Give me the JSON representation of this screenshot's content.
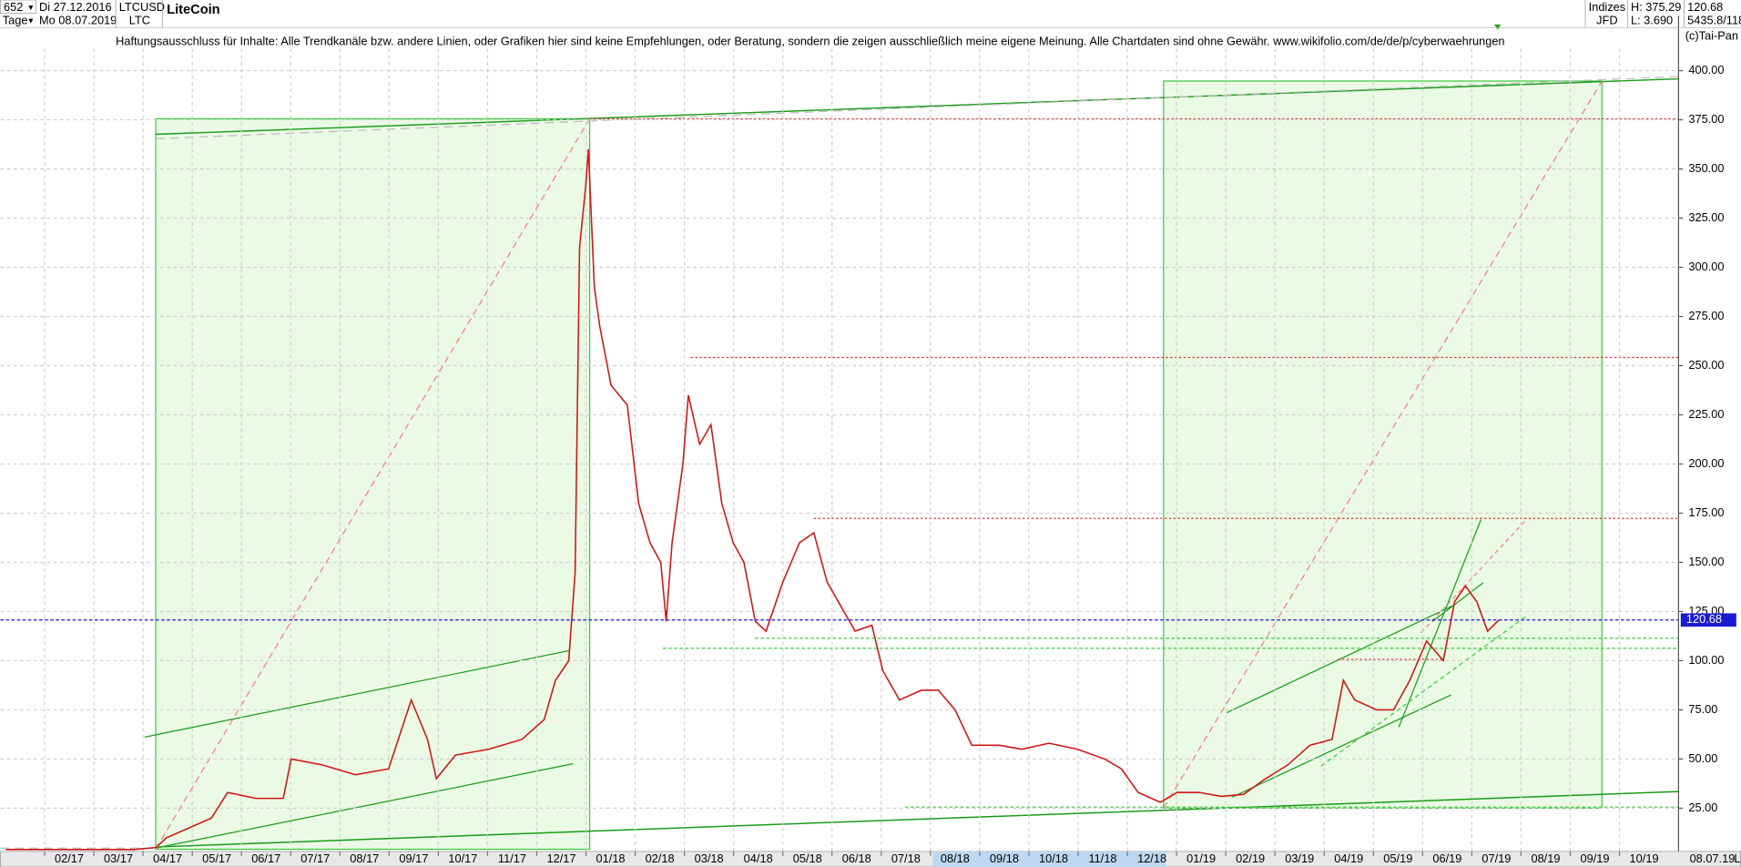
{
  "header": {
    "count": "652",
    "start_date": "Di 27.12.2016",
    "symbol": "LTCUSD",
    "name": "LiteCoin",
    "period": "Tage",
    "end_date": "Mo 08.07.2019",
    "short": "LTC",
    "group": "Indizes",
    "source": "JFD",
    "high": "H: 375.29",
    "low": "L: 3.690",
    "last": "120.68",
    "extra": "5435.8/118",
    "copyright": "(c)Tai-Pan"
  },
  "disclaimer": "Haftungsausschluss für Inhalte: Alle Trendkanäle bzw. andere Linien, oder Grafiken hier sind keine Empfehlungen, oder Beratung, sondern die zeigen ausschließlich meine eigene Meinung. Alle Chartdaten sind ohne Gewähr.  www.wikifolio.com/de/de/p/cyberwaehrungen",
  "footer": {
    "date": "08.07.19",
    "mode": "L"
  },
  "chart_data": {
    "type": "line",
    "color": "#d01818",
    "grid": true,
    "current_price": 120.68,
    "current_label": "120.68",
    "xlim": [
      0.1,
      34.2
    ],
    "ylim": [
      3,
      428
    ],
    "xticks": [
      {
        "value": 1,
        "label": "02/17"
      },
      {
        "value": 2,
        "label": "03/17"
      },
      {
        "value": 3,
        "label": "04/17"
      },
      {
        "value": 4,
        "label": "05/17"
      },
      {
        "value": 5,
        "label": "06/17"
      },
      {
        "value": 6,
        "label": "07/17"
      },
      {
        "value": 7,
        "label": "08/17"
      },
      {
        "value": 8,
        "label": "09/17"
      },
      {
        "value": 9,
        "label": "10/17"
      },
      {
        "value": 10,
        "label": "11/17"
      },
      {
        "value": 11,
        "label": "12/17"
      },
      {
        "value": 12,
        "label": "01/18"
      },
      {
        "value": 13,
        "label": "02/18"
      },
      {
        "value": 14,
        "label": "03/18"
      },
      {
        "value": 15,
        "label": "04/18"
      },
      {
        "value": 16,
        "label": "05/18"
      },
      {
        "value": 17,
        "label": "06/18"
      },
      {
        "value": 18,
        "label": "07/18"
      },
      {
        "value": 19,
        "label": "08/18"
      },
      {
        "value": 20,
        "label": "09/18"
      },
      {
        "value": 21,
        "label": "10/18"
      },
      {
        "value": 22,
        "label": "11/18"
      },
      {
        "value": 23,
        "label": "12/18"
      },
      {
        "value": 24,
        "label": "01/19"
      },
      {
        "value": 25,
        "label": "02/19"
      },
      {
        "value": 26,
        "label": "03/19"
      },
      {
        "value": 27,
        "label": "04/19"
      },
      {
        "value": 28,
        "label": "05/19"
      },
      {
        "value": 29,
        "label": "06/19"
      },
      {
        "value": 30,
        "label": "07/19"
      },
      {
        "value": 31,
        "label": "08/19"
      },
      {
        "value": 32,
        "label": "09/19"
      },
      {
        "value": 33,
        "label": "10/19"
      }
    ],
    "yticks": [
      {
        "value": 25,
        "label": "25.00"
      },
      {
        "value": 50,
        "label": "50.00"
      },
      {
        "value": 75,
        "label": "75.00"
      },
      {
        "value": 100,
        "label": "100.00"
      },
      {
        "value": 125,
        "label": "125.00"
      },
      {
        "value": 150,
        "label": "150.00"
      },
      {
        "value": 175,
        "label": "175.00"
      },
      {
        "value": 200,
        "label": "200.00"
      },
      {
        "value": 225,
        "label": "225.00"
      },
      {
        "value": 250,
        "label": "250.00"
      },
      {
        "value": 275,
        "label": "275.00"
      },
      {
        "value": 300,
        "label": "300.00"
      },
      {
        "value": 325,
        "label": "325.00"
      },
      {
        "value": 350,
        "label": "350.00"
      },
      {
        "value": 375,
        "label": "375.00"
      },
      {
        "value": 400,
        "label": "400.00"
      }
    ],
    "x": [
      0.21,
      1.45,
      2.81,
      3.26,
      3.48,
      3.94,
      4.39,
      4.72,
      5.29,
      5.85,
      6.01,
      6.64,
      7.32,
      7.99,
      8.45,
      8.78,
      8.96,
      9.35,
      10.03,
      10.7,
      11.15,
      11.38,
      11.65,
      11.78,
      11.87,
      11.99,
      12.05,
      12.17,
      12.28,
      12.51,
      12.84,
      13.07,
      13.3,
      13.52,
      13.63,
      13.75,
      13.97,
      14.08,
      14.31,
      14.54,
      14.76,
      14.99,
      15.21,
      15.44,
      15.66,
      16.0,
      16.34,
      16.63,
      16.9,
      17.24,
      17.47,
      17.81,
      18.03,
      18.37,
      18.82,
      19.16,
      19.5,
      19.84,
      20.4,
      20.85,
      21.41,
      21.98,
      22.54,
      22.88,
      23.22,
      23.67,
      24.01,
      24.46,
      24.91,
      25.36,
      25.81,
      26.26,
      26.71,
      27.16,
      27.39,
      27.62,
      28.07,
      28.41,
      28.74,
      29.08,
      29.42,
      29.65,
      29.87,
      30.1,
      30.32,
      30.55
    ],
    "values": [
      4,
      4,
      4,
      5,
      10,
      15,
      20,
      33,
      30,
      30,
      50,
      47,
      42,
      45,
      80,
      60,
      40,
      52,
      55,
      60,
      70,
      90,
      100,
      145,
      310,
      340,
      360,
      290,
      270,
      240,
      230,
      180,
      160,
      150,
      120,
      160,
      200,
      235,
      210,
      220,
      180,
      160,
      150,
      120,
      115,
      140,
      160,
      165,
      140,
      125,
      115,
      118,
      95,
      80,
      85,
      85,
      75,
      57,
      57,
      55,
      58,
      55,
      50,
      45,
      33,
      28,
      33,
      33,
      31,
      32,
      40,
      47,
      57,
      60,
      90,
      80,
      75,
      75,
      90,
      110,
      100,
      130,
      138,
      130,
      115,
      120.68
    ]
  }
}
